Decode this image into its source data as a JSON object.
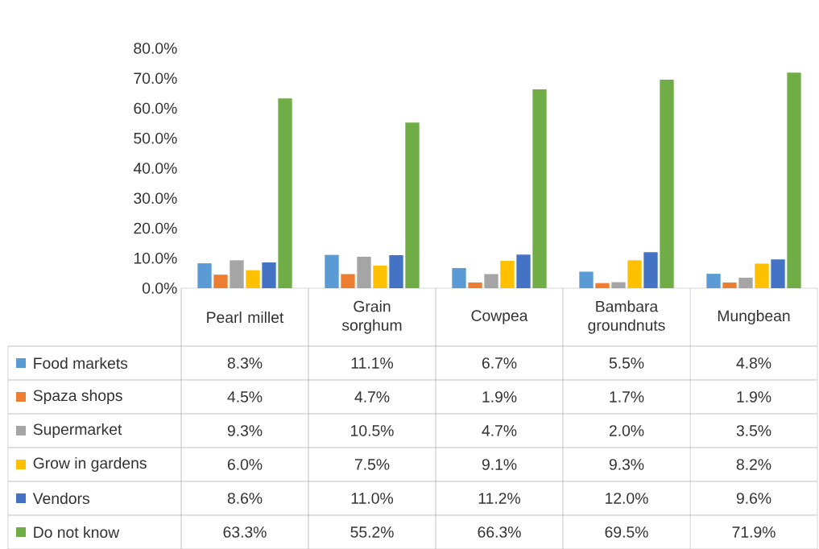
{
  "chart_data": {
    "type": "bar",
    "categories": [
      "Pearl millet",
      "Grain sorghum",
      "Cowpea",
      "Bambara groundnuts",
      "Mungbean"
    ],
    "ylim": [
      0,
      80
    ],
    "yticks": [
      {
        "value": 0,
        "label": "0.0%"
      },
      {
        "value": 10,
        "label": "10.0%"
      },
      {
        "value": 20,
        "label": "20.0%"
      },
      {
        "value": 30,
        "label": "30.0%"
      },
      {
        "value": 40,
        "label": "40.0%"
      },
      {
        "value": 50,
        "label": "50.0%"
      },
      {
        "value": 60,
        "label": "60.0%"
      },
      {
        "value": 70,
        "label": "70.0%"
      },
      {
        "value": 80,
        "label": "80.0%"
      }
    ],
    "legend": "bottom",
    "series": [
      {
        "name": "Food markets",
        "color": "#5b9bd5",
        "values": [
          8.3,
          11.1,
          6.7,
          5.5,
          4.8
        ],
        "value_labels": [
          "8.3%",
          "11.1%",
          "6.7%",
          "5.5%",
          "4.8%"
        ]
      },
      {
        "name": "Spaza shops",
        "color": "#ed7d31",
        "values": [
          4.5,
          4.7,
          1.9,
          1.7,
          1.9
        ],
        "value_labels": [
          "4.5%",
          "4.7%",
          "1.9%",
          "1.7%",
          "1.9%"
        ]
      },
      {
        "name": "Supermarket",
        "color": "#a5a5a5",
        "values": [
          9.3,
          10.5,
          4.7,
          2.0,
          3.5
        ],
        "value_labels": [
          "9.3%",
          "10.5%",
          "4.7%",
          "2.0%",
          "3.5%"
        ]
      },
      {
        "name": "Grow in gardens",
        "color": "#ffc000",
        "values": [
          6.0,
          7.5,
          9.1,
          9.3,
          8.2
        ],
        "value_labels": [
          "6.0%",
          "7.5%",
          "9.1%",
          "9.3%",
          "8.2%"
        ]
      },
      {
        "name": "Vendors",
        "color": "#4472c4",
        "values": [
          8.6,
          11.0,
          11.2,
          12.0,
          9.6
        ],
        "value_labels": [
          "8.6%",
          "11.0%",
          "11.2%",
          "12.0%",
          "9.6%"
        ]
      },
      {
        "name": "Do not know",
        "color": "#70ad47",
        "values": [
          63.3,
          55.2,
          66.3,
          69.5,
          71.9
        ],
        "value_labels": [
          "63.3%",
          "55.2%",
          "66.3%",
          "69.5%",
          "71.9%"
        ]
      }
    ]
  }
}
